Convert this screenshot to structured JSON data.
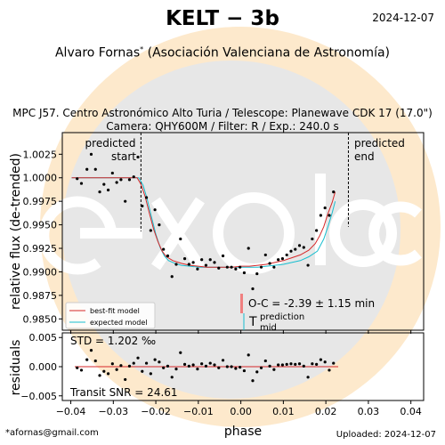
{
  "header": {
    "title": "KELT − 3b",
    "date": "2024-12-07",
    "observer": "Alvaro Fornas",
    "observer_mark": "*",
    "affiliation": "(Asociación Valenciana de Astronomía)",
    "station_line": "MPC J57. Centro Astronómico Alto Turia / Telescope: Planewave CDK 17 (17.0\")",
    "camera_line": "Camera: QHY600M / Filter: R / Exp.: 240.0 s"
  },
  "footer": {
    "email": "*afornas@gmail.com",
    "uploaded": "Uploaded: 2024-12-07"
  },
  "watermark": {
    "text": "exoclock",
    "logo_color": "#fde9cc",
    "circle_color": "#e7e7e7"
  },
  "colors": {
    "best_fit": "#d62728",
    "expected": "#17becf",
    "data": "#000000",
    "oc_bar": "#f08080",
    "zero_line": "#d62728"
  },
  "chart_data": [
    {
      "type": "scatter",
      "panel": "light-curve",
      "xlabel": "phase",
      "ylabel": "relative flux (de-trended)",
      "xlim": [
        -0.042,
        0.043
      ],
      "ylim": [
        0.9838,
        1.0048
      ],
      "yticks": [
        0.985,
        0.9875,
        0.99,
        0.9925,
        0.995,
        0.9975,
        1.0,
        1.0025
      ],
      "ytick_labels": [
        "0.9850",
        "0.9875",
        "0.9900",
        "0.9925",
        "0.9950",
        "0.9975",
        "1.0000",
        "1.0025"
      ],
      "annotations": {
        "predicted_start": {
          "text1": "predicted",
          "text2": "start",
          "x": -0.0235
        },
        "predicted_end": {
          "text1": "predicted",
          "text2": "end",
          "x": 0.0253
        },
        "oc": "O-C = -2.39 ± 1.15 min",
        "t_main": "T",
        "t_sup": "prediction",
        "t_sub": "mid"
      },
      "legend": {
        "placement": "lower-left",
        "entries": [
          "best-fit model",
          "expected model"
        ]
      },
      "series": [
        {
          "name": "data",
          "x": [
            -0.0385,
            -0.0375,
            -0.0362,
            -0.0352,
            -0.0342,
            -0.0332,
            -0.0322,
            -0.0312,
            -0.0302,
            -0.0292,
            -0.0282,
            -0.0272,
            -0.0262,
            -0.0252,
            -0.0242,
            -0.0232,
            -0.0222,
            -0.0212,
            -0.0202,
            -0.0192,
            -0.0182,
            -0.0172,
            -0.0162,
            -0.0152,
            -0.0142,
            -0.0132,
            -0.0122,
            -0.0112,
            -0.0102,
            -0.0092,
            -0.0082,
            -0.0072,
            -0.0062,
            -0.0052,
            -0.0042,
            -0.0032,
            -0.0022,
            -0.0012,
            -0.0002,
            0.0008,
            0.0018,
            0.0028,
            0.0038,
            0.0048,
            0.0058,
            0.0068,
            0.0078,
            0.0088,
            0.0098,
            0.0108,
            0.0118,
            0.0128,
            0.0138,
            0.0148,
            0.0158,
            0.0168,
            0.0178,
            0.0188,
            0.0198,
            0.0208,
            0.0218
          ],
          "y": [
            0.9999,
            0.9994,
            1.0009,
            1.0025,
            1.0009,
            0.9985,
            0.9993,
            0.9987,
            1.0005,
            0.9995,
            0.9998,
            0.9975,
            0.9998,
            1.0001,
            1.0022,
            0.997,
            0.9979,
            0.9944,
            0.9966,
            0.995,
            0.9924,
            0.9917,
            0.9895,
            0.9908,
            0.9935,
            0.9914,
            0.9908,
            0.991,
            0.9903,
            0.9913,
            0.9907,
            0.9913,
            0.991,
            0.9904,
            0.9917,
            0.9905,
            0.9905,
            0.9903,
            0.9905,
            0.9899,
            0.9925,
            0.9882,
            0.9898,
            0.9905,
            0.9918,
            0.9909,
            0.9905,
            0.9913,
            0.9914,
            0.9918,
            0.9922,
            0.9924,
            0.9928,
            0.9926,
            0.9907,
            0.9935,
            0.9944,
            0.996,
            0.9968,
            0.996,
            0.9985
          ]
        },
        {
          "name": "best-fit model",
          "x": [
            -0.0398,
            -0.0244,
            -0.0235,
            -0.0225,
            -0.0215,
            -0.0205,
            -0.0195,
            -0.0185,
            -0.0175,
            -0.016,
            -0.014,
            -0.012,
            -0.01,
            -0.008,
            -0.006,
            -0.004,
            -0.002,
            0.0,
            0.002,
            0.004,
            0.006,
            0.008,
            0.01,
            0.012,
            0.014,
            0.016,
            0.0175,
            0.0185,
            0.0195,
            0.0205,
            0.0215,
            0.0222
          ],
          "y": [
            1.0,
            1.0,
            0.9993,
            0.998,
            0.9962,
            0.9945,
            0.9932,
            0.9922,
            0.9916,
            0.9912,
            0.9909,
            0.9907,
            0.9906,
            0.9905,
            0.9905,
            0.9905,
            0.9905,
            0.9906,
            0.9906,
            0.9907,
            0.9908,
            0.991,
            0.9912,
            0.9915,
            0.9918,
            0.9923,
            0.993,
            0.9938,
            0.9948,
            0.9962,
            0.9974,
            0.9985
          ]
        },
        {
          "name": "expected model",
          "x": [
            -0.0398,
            -0.024,
            -0.023,
            -0.022,
            -0.021,
            -0.02,
            -0.019,
            -0.018,
            -0.017,
            -0.0155,
            -0.014,
            -0.012,
            -0.01,
            -0.008,
            -0.006,
            -0.004,
            -0.002,
            0.0,
            0.002,
            0.004,
            0.006,
            0.008,
            0.01,
            0.012,
            0.014,
            0.016,
            0.018,
            0.0195,
            0.0205,
            0.0215,
            0.0222
          ],
          "y": [
            1.0,
            1.0,
            0.9992,
            0.9977,
            0.9958,
            0.994,
            0.9926,
            0.9917,
            0.9912,
            0.9909,
            0.9907,
            0.9906,
            0.9905,
            0.9905,
            0.9905,
            0.9905,
            0.9905,
            0.9905,
            0.9905,
            0.9905,
            0.9906,
            0.9907,
            0.9908,
            0.991,
            0.9912,
            0.9916,
            0.9922,
            0.9935,
            0.9948,
            0.9963,
            0.9975
          ]
        }
      ]
    },
    {
      "type": "scatter",
      "panel": "residuals",
      "xlabel": "phase",
      "ylabel": "residuals",
      "xlim": [
        -0.042,
        0.043
      ],
      "ylim": [
        -0.0058,
        0.0058
      ],
      "xticks": [
        -0.04,
        -0.03,
        -0.02,
        -0.01,
        0.0,
        0.01,
        0.02,
        0.03,
        0.04
      ],
      "xtick_labels": [
        "−0.04",
        "−0.03",
        "−0.02",
        "−0.01",
        "0.00",
        "0.01",
        "0.02",
        "0.03",
        "0.04"
      ],
      "yticks": [
        -0.005,
        0.0,
        0.005
      ],
      "ytick_labels": [
        "−0.005",
        "0.000",
        "0.005"
      ],
      "stats": {
        "std": "STD = 1.202 ‰",
        "snr": "Transit SNR = 24.61"
      },
      "series": [
        {
          "name": "residuals",
          "x": [
            -0.0385,
            -0.0375,
            -0.0362,
            -0.0352,
            -0.0342,
            -0.0332,
            -0.0322,
            -0.0312,
            -0.0302,
            -0.0292,
            -0.0282,
            -0.0272,
            -0.0262,
            -0.0252,
            -0.0242,
            -0.0232,
            -0.0222,
            -0.0212,
            -0.0202,
            -0.0192,
            -0.0182,
            -0.0172,
            -0.0162,
            -0.0152,
            -0.0142,
            -0.0132,
            -0.0122,
            -0.0112,
            -0.0102,
            -0.0092,
            -0.0082,
            -0.0072,
            -0.0062,
            -0.0052,
            -0.0042,
            -0.0032,
            -0.0022,
            -0.0012,
            -0.0002,
            0.0008,
            0.0018,
            0.0028,
            0.0038,
            0.0048,
            0.0058,
            0.0068,
            0.0078,
            0.0088,
            0.0098,
            0.0108,
            0.0118,
            0.0128,
            0.0138,
            0.0148,
            0.0158,
            0.0168,
            0.0178,
            0.0188,
            0.0198,
            0.0208,
            0.0218
          ],
          "y": [
            -0.0002,
            -0.0006,
            0.0012,
            0.0028,
            0.001,
            -0.0015,
            -0.0008,
            -0.0012,
            0.0005,
            -0.0005,
            0.0002,
            -0.0022,
            0.0001,
            0.0006,
            0.0015,
            -0.0008,
            0.0006,
            -0.0012,
            0.0012,
            0.0008,
            -0.0002,
            0.0001,
            -0.0018,
            -0.0004,
            0.0024,
            0.0004,
            0.0001,
            0.0003,
            -0.0004,
            0.0005,
            0.0001,
            0.0006,
            0.0003,
            -0.0002,
            0.0011,
            0.0,
            0.0,
            -0.0003,
            -0.0001,
            -0.0007,
            0.002,
            -0.0024,
            -0.0009,
            -0.0002,
            0.001,
            0.0001,
            -0.0005,
            0.0003,
            0.0003,
            0.0004,
            0.0005,
            0.0004,
            0.0005,
            0.0001,
            -0.0018,
            0.0005,
            0.0004,
            0.0012,
            0.0008,
            -0.0006,
            0.0006
          ]
        }
      ]
    }
  ]
}
